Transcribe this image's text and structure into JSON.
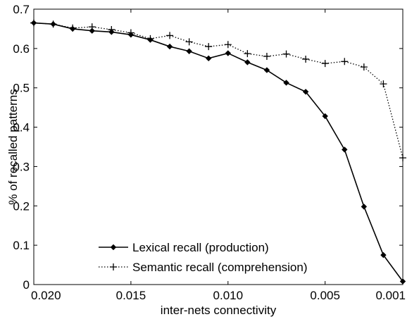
{
  "chart_data": {
    "type": "line",
    "title": "",
    "xlabel": "inter-nets connectivity",
    "ylabel": "% of recalled patterns",
    "xlim": [
      0.02,
      0.001
    ],
    "ylim": [
      0,
      0.7
    ],
    "x_ticks": [
      0.02,
      0.015,
      0.01,
      0.005,
      0.001
    ],
    "x_tick_labels": [
      "0.020",
      "0.015",
      "0.010",
      "0.005",
      "0.001"
    ],
    "y_ticks": [
      0,
      0.1,
      0.2,
      0.3,
      0.4,
      0.5,
      0.6,
      0.7
    ],
    "y_tick_labels": [
      "0",
      "0.1",
      "0.2",
      "0.3",
      "0.4",
      "0.5",
      "0.6",
      "0.7"
    ],
    "grid": false,
    "legend_position": "bottom-left",
    "x": [
      0.02,
      0.019,
      0.018,
      0.017,
      0.016,
      0.015,
      0.014,
      0.013,
      0.012,
      0.011,
      0.01,
      0.009,
      0.008,
      0.007,
      0.006,
      0.005,
      0.004,
      0.003,
      0.002,
      0.001
    ],
    "series": [
      {
        "name": "Lexical recall (production)",
        "color": "#000000",
        "line_style": "solid",
        "marker": "diamond",
        "values": [
          0.665,
          0.662,
          0.65,
          0.645,
          0.642,
          0.635,
          0.622,
          0.605,
          0.593,
          0.575,
          0.588,
          0.565,
          0.545,
          0.513,
          0.49,
          0.428,
          0.343,
          0.198,
          0.075,
          0.008
        ]
      },
      {
        "name": "Semantic recall (comprehension)",
        "color": "#000000",
        "line_style": "dotted",
        "marker": "plus",
        "values": [
          0.665,
          0.662,
          0.652,
          0.655,
          0.648,
          0.64,
          0.625,
          0.633,
          0.617,
          0.605,
          0.61,
          0.587,
          0.58,
          0.586,
          0.573,
          0.562,
          0.567,
          0.553,
          0.51,
          0.322
        ]
      }
    ]
  }
}
